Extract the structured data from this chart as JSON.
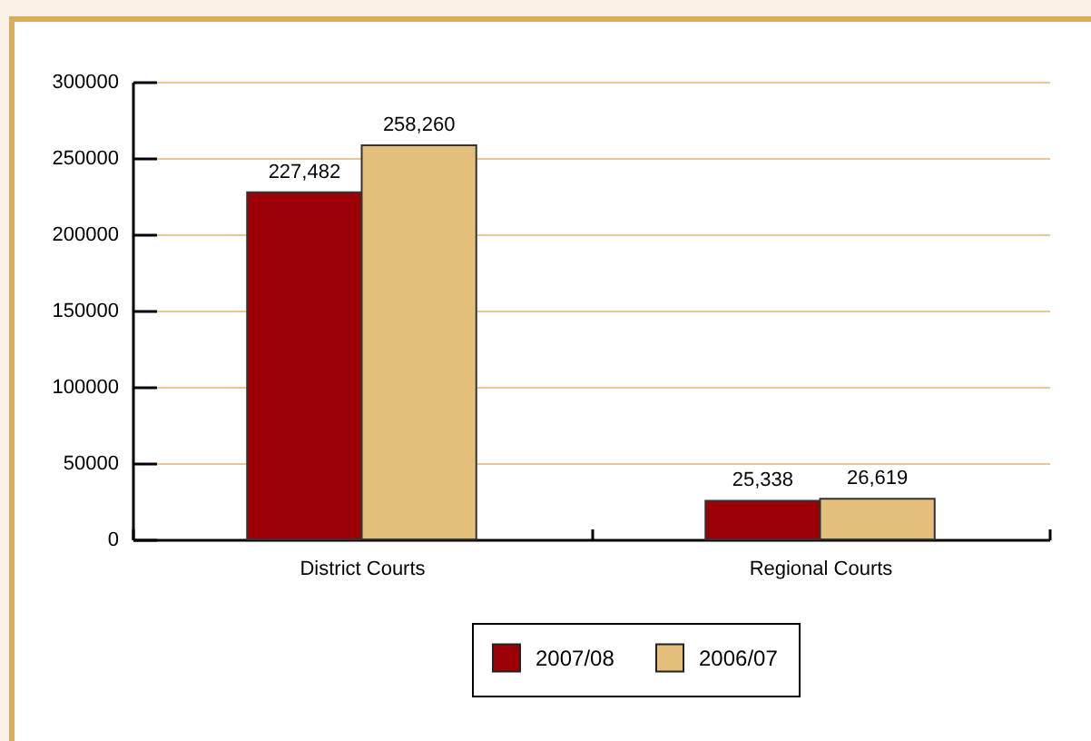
{
  "chart_data": {
    "type": "bar",
    "categories": [
      "District Courts",
      "Regional Courts"
    ],
    "series": [
      {
        "name": "2007/08",
        "color": "#9c0006",
        "values": [
          227482,
          25338
        ],
        "value_labels": [
          "227,482",
          "25,338"
        ]
      },
      {
        "name": "2006/07",
        "color": "#e4bf7b",
        "values": [
          258260,
          26619
        ],
        "value_labels": [
          "258,260",
          "26,619"
        ]
      }
    ],
    "ylim": [
      0,
      300000
    ],
    "yticks": [
      0,
      50000,
      100000,
      150000,
      200000,
      250000,
      300000
    ],
    "grid": "y",
    "legend": "bottom"
  }
}
